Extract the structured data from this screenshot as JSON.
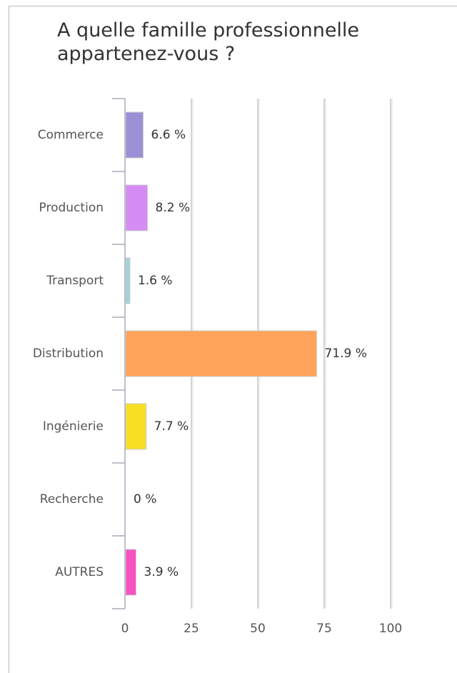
{
  "chart_data": {
    "type": "bar",
    "orientation": "horizontal",
    "title": "A quelle famille professionnelle appartenez-vous ?",
    "categories": [
      "Commerce",
      "Production",
      "Transport",
      "Distribution",
      "Ingénierie",
      "Recherche",
      "AUTRES"
    ],
    "values": [
      6.6,
      8.2,
      1.6,
      71.9,
      7.7,
      0,
      3.9
    ],
    "value_labels": [
      "6.6 %",
      "8.2 %",
      "1.6 %",
      "71.9 %",
      "7.7 %",
      "0 %",
      "3.9 %"
    ],
    "colors": [
      "#9b8fd6",
      "#d68cf5",
      "#9fd3dc",
      "#ffa45a",
      "#f9df24",
      "#8fc3e8",
      "#f652c2"
    ],
    "xlim": [
      0,
      100
    ],
    "xticks": [
      0,
      25,
      50,
      75,
      100
    ],
    "grid": true
  }
}
